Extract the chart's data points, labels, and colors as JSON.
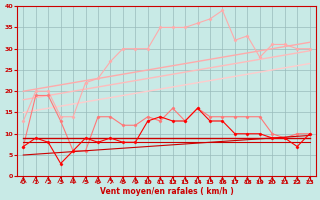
{
  "x": [
    0,
    1,
    2,
    3,
    4,
    5,
    6,
    7,
    8,
    9,
    10,
    11,
    12,
    13,
    14,
    15,
    16,
    17,
    18,
    19,
    20,
    21,
    22,
    23
  ],
  "line_upper_jagged": [
    13,
    20,
    20,
    14,
    14,
    22,
    23,
    27,
    30,
    30,
    30,
    35,
    35,
    35,
    36,
    37,
    39,
    32,
    33,
    28,
    31,
    31,
    30,
    30
  ],
  "line_mid_jagged": [
    7,
    19,
    19,
    13,
    6,
    6,
    14,
    14,
    12,
    12,
    14,
    13,
    16,
    13,
    16,
    14,
    14,
    14,
    14,
    14,
    10,
    9,
    10,
    10
  ],
  "line_slope1": [
    20,
    20.5,
    21,
    21.5,
    22,
    22.5,
    23,
    23.5,
    24,
    24.5,
    25,
    25.5,
    26,
    26.5,
    27,
    27.5,
    28,
    28.5,
    29,
    29.5,
    30,
    30.5,
    31,
    31.5
  ],
  "line_slope2": [
    18,
    18.5,
    19,
    19.5,
    20,
    20.5,
    21,
    21.5,
    22,
    22.5,
    23,
    23.5,
    24,
    24.5,
    25,
    25.5,
    26,
    26.5,
    27,
    27.5,
    28,
    28.5,
    29,
    29.5
  ],
  "line_slope3": [
    15,
    15.5,
    16,
    16.5,
    17,
    17.5,
    18,
    18.5,
    19,
    19.5,
    20,
    20.5,
    21,
    21.5,
    22,
    22.5,
    23,
    23.5,
    24,
    24.5,
    25,
    25.5,
    26,
    26.5
  ],
  "line_lower_jagged": [
    7,
    9,
    8,
    3,
    6,
    9,
    8,
    9,
    8,
    8,
    13,
    14,
    13,
    13,
    16,
    13,
    13,
    10,
    10,
    10,
    9,
    9,
    7,
    10
  ],
  "line_flat1": [
    9,
    9,
    9,
    9,
    9,
    9,
    9,
    9,
    9,
    9,
    9,
    9,
    9,
    9,
    9,
    9,
    9,
    9,
    9,
    9,
    9,
    9,
    9,
    9
  ],
  "line_flat2": [
    8,
    8,
    8,
    8,
    8,
    8,
    8,
    8,
    8,
    8,
    8,
    8,
    8,
    8,
    8,
    8,
    8,
    8,
    8,
    8,
    8,
    8,
    8,
    8
  ],
  "line_slope_low": [
    5,
    5.2,
    5.4,
    5.6,
    5.8,
    6.0,
    6.2,
    6.4,
    6.6,
    6.8,
    7.0,
    7.2,
    7.4,
    7.6,
    7.8,
    8.0,
    8.2,
    8.4,
    8.6,
    8.8,
    9.0,
    9.2,
    9.4,
    9.6
  ],
  "background_color": "#c8eae6",
  "grid_color": "#99bbbb",
  "xlabel": "Vent moyen/en rafales ( km/h )",
  "ylim": [
    0,
    40
  ],
  "xlim": [
    -0.5,
    23.5
  ],
  "yticks": [
    0,
    5,
    10,
    15,
    20,
    25,
    30,
    35,
    40
  ],
  "xticks": [
    0,
    1,
    2,
    3,
    4,
    5,
    6,
    7,
    8,
    9,
    10,
    11,
    12,
    13,
    14,
    15,
    16,
    17,
    18,
    19,
    20,
    21,
    22,
    23
  ],
  "color_light_pink1": "#ffaaaa",
  "color_light_pink2": "#ffbbbb",
  "color_light_pink3": "#ffcccc",
  "color_mid_pink": "#ff7777",
  "color_red": "#ff0000",
  "color_dark_red": "#cc0000"
}
